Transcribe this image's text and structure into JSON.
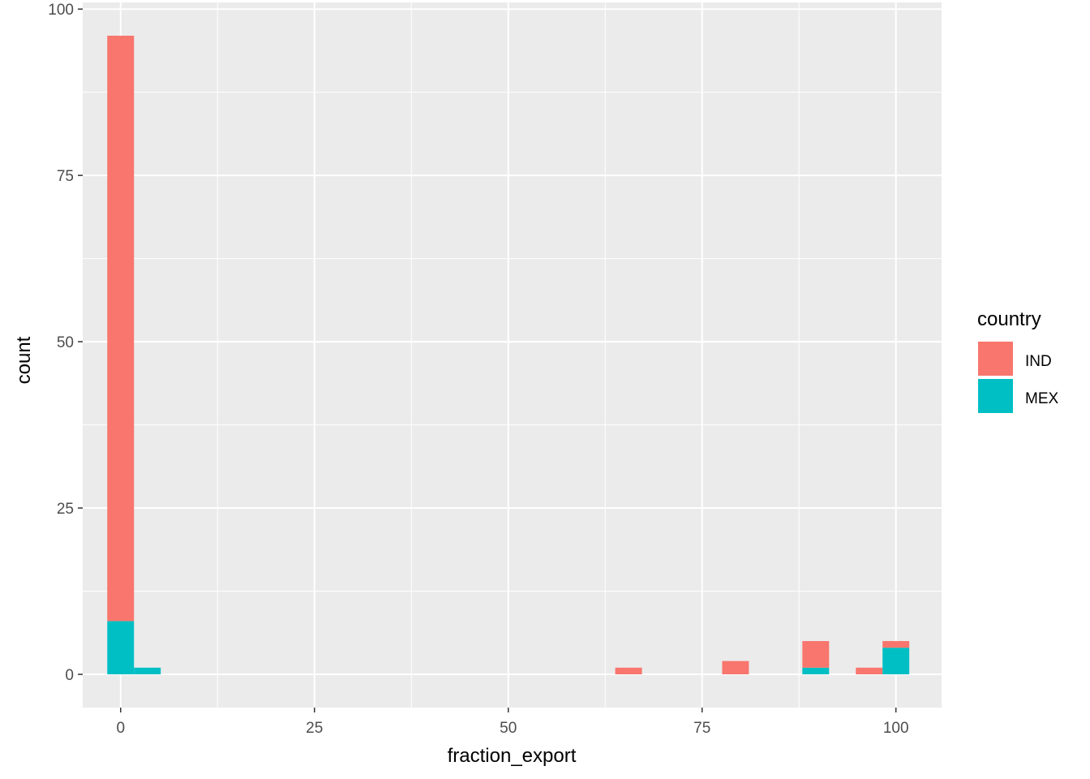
{
  "chart_data": {
    "type": "bar",
    "subtype": "stacked-histogram",
    "xlabel": "fraction_export",
    "ylabel": "count",
    "xlim": [
      -4.89,
      105.89
    ],
    "ylim": [
      -5,
      101
    ],
    "x_ticks": [
      0,
      25,
      50,
      75,
      100
    ],
    "y_ticks": [
      0,
      25,
      50,
      75,
      100
    ],
    "x_tick_labels": [
      "0",
      "25",
      "50",
      "75",
      "100"
    ],
    "y_tick_labels": [
      "0",
      "25",
      "50",
      "75",
      "100"
    ],
    "bin_width": 3.448,
    "grid": true,
    "legend": {
      "title": "country",
      "position": "right",
      "entries": [
        {
          "name": "IND",
          "color": "#F8766D"
        },
        {
          "name": "MEX",
          "color": "#00BFC4"
        }
      ]
    },
    "colors": {
      "panel_background": "#EBEBEB",
      "grid": "#FFFFFF",
      "IND": "#F8766D",
      "MEX": "#00BFC4"
    },
    "bin_centers": [
      0,
      3.448,
      65.517,
      79.31,
      89.655,
      96.552,
      100
    ],
    "series": [
      {
        "name": "MEX",
        "values": [
          8,
          1,
          0,
          0,
          1,
          0,
          4
        ]
      },
      {
        "name": "IND",
        "values": [
          88,
          0,
          1,
          2,
          4,
          1,
          1
        ]
      }
    ]
  }
}
